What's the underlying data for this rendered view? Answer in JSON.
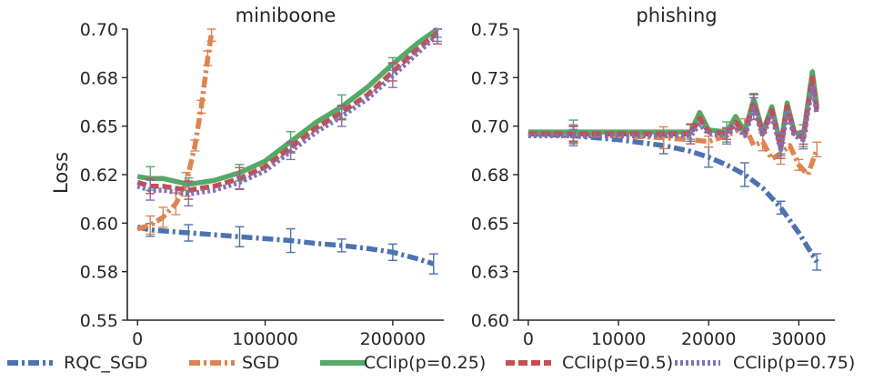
{
  "chart_data": [
    {
      "type": "line",
      "title": "miniboone",
      "xlabel": "",
      "ylabel": "Loss",
      "xlim": [
        -8000,
        240000
      ],
      "ylim": [
        0.55,
        0.7
      ],
      "xticks": [
        0,
        100000,
        200000
      ],
      "xtick_labels": [
        "0",
        "100000",
        "200000"
      ],
      "yticks": [
        0.55,
        0.575,
        0.6,
        0.625,
        0.65,
        0.675,
        0.7
      ],
      "ytick_labels": [
        "0.55",
        "0.58",
        "0.60",
        "0.62",
        "0.65",
        "0.68",
        "0.70"
      ],
      "grid": false,
      "series": [
        {
          "name": "RQC_SGD",
          "x": [
            0,
            10000,
            20000,
            40000,
            60000,
            80000,
            100000,
            120000,
            140000,
            160000,
            180000,
            200000,
            220000,
            232000
          ],
          "y": [
            0.598,
            0.5965,
            0.596,
            0.595,
            0.594,
            0.593,
            0.592,
            0.591,
            0.5895,
            0.5885,
            0.587,
            0.585,
            0.5815,
            0.579
          ]
        },
        {
          "name": "SGD",
          "x": [
            0,
            10000,
            20000,
            30000,
            38000,
            45000,
            50000,
            55000,
            58000
          ],
          "y": [
            0.597,
            0.599,
            0.603,
            0.61,
            0.62,
            0.64,
            0.66,
            0.685,
            0.698
          ]
        },
        {
          "name": "CClip(p=0.25)",
          "x": [
            0,
            10000,
            20000,
            40000,
            60000,
            80000,
            100000,
            120000,
            140000,
            160000,
            180000,
            200000,
            220000,
            235000
          ],
          "y": [
            0.624,
            0.623,
            0.623,
            0.62,
            0.622,
            0.626,
            0.632,
            0.642,
            0.652,
            0.66,
            0.67,
            0.682,
            0.693,
            0.7
          ]
        },
        {
          "name": "CClip(p=0.5)",
          "x": [
            0,
            10000,
            20000,
            40000,
            60000,
            80000,
            100000,
            120000,
            140000,
            160000,
            180000,
            200000,
            220000,
            235000
          ],
          "y": [
            0.621,
            0.619,
            0.619,
            0.617,
            0.619,
            0.623,
            0.629,
            0.639,
            0.649,
            0.657,
            0.666,
            0.678,
            0.69,
            0.698
          ]
        },
        {
          "name": "CClip(p=0.75)",
          "x": [
            0,
            10000,
            20000,
            40000,
            60000,
            80000,
            100000,
            120000,
            140000,
            160000,
            180000,
            200000,
            220000,
            235000
          ],
          "y": [
            0.619,
            0.617,
            0.617,
            0.615,
            0.617,
            0.621,
            0.627,
            0.637,
            0.647,
            0.655,
            0.664,
            0.676,
            0.688,
            0.697
          ]
        }
      ]
    },
    {
      "type": "line",
      "title": "phishing",
      "xlabel": "",
      "ylabel": "",
      "xlim": [
        -1100,
        34000
      ],
      "ylim": [
        0.6,
        0.75
      ],
      "xticks": [
        0,
        10000,
        20000,
        30000
      ],
      "xtick_labels": [
        "0",
        "10000",
        "20000",
        "30000"
      ],
      "yticks": [
        0.6,
        0.625,
        0.65,
        0.675,
        0.7,
        0.725,
        0.75
      ],
      "ytick_labels": [
        "0.60",
        "0.63",
        "0.65",
        "0.68",
        "0.70",
        "0.73",
        "0.75"
      ],
      "grid": false,
      "series": [
        {
          "name": "RQC_SGD",
          "x": [
            0,
            5000,
            10000,
            15000,
            18000,
            20000,
            22000,
            24000,
            26000,
            28000,
            30000,
            32000
          ],
          "y": [
            0.696,
            0.695,
            0.693,
            0.69,
            0.687,
            0.684,
            0.68,
            0.675,
            0.668,
            0.658,
            0.645,
            0.63
          ]
        },
        {
          "name": "SGD",
          "x": [
            0,
            5000,
            10000,
            15000,
            18000,
            20000,
            22000,
            24000,
            25000,
            26000,
            27000,
            28000,
            29000,
            30000,
            31000,
            32000
          ],
          "y": [
            0.697,
            0.696,
            0.695,
            0.694,
            0.693,
            0.692,
            0.695,
            0.7,
            0.69,
            0.692,
            0.683,
            0.686,
            0.69,
            0.68,
            0.675,
            0.688
          ]
        },
        {
          "name": "CClip(p=0.25)",
          "x": [
            0,
            5000,
            10000,
            15000,
            18000,
            19000,
            20000,
            22000,
            23000,
            24000,
            25000,
            26000,
            27000,
            28000,
            28700,
            29500,
            30500,
            31500,
            32000
          ],
          "y": [
            0.697,
            0.697,
            0.697,
            0.697,
            0.697,
            0.707,
            0.698,
            0.697,
            0.705,
            0.697,
            0.714,
            0.697,
            0.71,
            0.69,
            0.712,
            0.697,
            0.695,
            0.728,
            0.71
          ]
        },
        {
          "name": "CClip(p=0.5)",
          "x": [
            0,
            5000,
            10000,
            15000,
            18000,
            19000,
            20000,
            22000,
            23000,
            24000,
            25000,
            26000,
            27000,
            28000,
            28700,
            29500,
            30500,
            31500,
            32000
          ],
          "y": [
            0.696,
            0.696,
            0.696,
            0.696,
            0.696,
            0.704,
            0.697,
            0.696,
            0.702,
            0.696,
            0.712,
            0.696,
            0.708,
            0.689,
            0.71,
            0.696,
            0.694,
            0.725,
            0.708
          ]
        },
        {
          "name": "CClip(p=0.75)",
          "x": [
            0,
            5000,
            10000,
            15000,
            18000,
            19000,
            20000,
            22000,
            23000,
            24000,
            25000,
            26000,
            27000,
            28000,
            28700,
            29500,
            30500,
            31500,
            32000
          ],
          "y": [
            0.695,
            0.695,
            0.695,
            0.695,
            0.695,
            0.701,
            0.696,
            0.695,
            0.7,
            0.695,
            0.709,
            0.695,
            0.706,
            0.688,
            0.707,
            0.695,
            0.693,
            0.721,
            0.706
          ]
        }
      ]
    }
  ],
  "legend": {
    "placement": "bottom",
    "entries": [
      {
        "label": "RQC_SGD",
        "color": "#4c72b0",
        "style": "dashdot"
      },
      {
        "label": "SGD",
        "color": "#dd8452",
        "style": "dashdot"
      },
      {
        "label": "CClip(p=0.25)",
        "color": "#55a868",
        "style": "solid"
      },
      {
        "label": "CClip(p=0.5)",
        "color": "#c44e52",
        "style": "dashed"
      },
      {
        "label": "CClip(p=0.75)",
        "color": "#8172b3",
        "style": "dotted"
      }
    ]
  }
}
